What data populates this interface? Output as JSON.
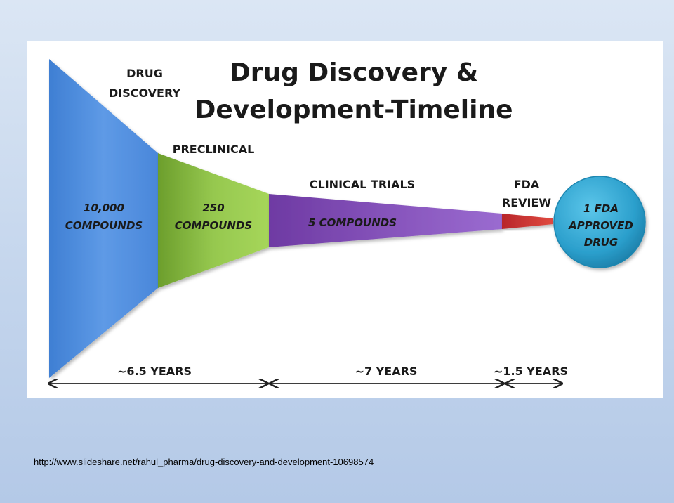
{
  "title": {
    "line1": "Drug Discovery &",
    "line2": "Development-Timeline"
  },
  "stages": [
    {
      "name_line1": "DRUG",
      "name_line2": "DISCOVERY",
      "count_line1": "10,000",
      "count_line2": "COMPOUNDS",
      "color": "#4f8fde"
    },
    {
      "name_line1": "PRECLINICAL",
      "name_line2": "",
      "count_line1": "250",
      "count_line2": "COMPOUNDS",
      "color": "#86b73f"
    },
    {
      "name_line1": "CLINICAL TRIALS",
      "name_line2": "",
      "count_line1": "5 COMPOUNDS",
      "count_line2": "",
      "color": "#7f4bb0"
    },
    {
      "name_line1": "FDA",
      "name_line2": "REVIEW",
      "count_line1": "",
      "count_line2": "",
      "color": "#c8302e"
    }
  ],
  "outcome": {
    "line1": "1 FDA",
    "line2": "APPROVED",
    "line3": "DRUG",
    "color": "#2a9cc9"
  },
  "timeline": [
    {
      "label": "~6.5 YEARS"
    },
    {
      "label": "~7 YEARS"
    },
    {
      "label": "~1.5 YEARS"
    }
  ],
  "source_url": "http://www.slideshare.net/rahul_pharma/drug-discovery-and-development-10698574"
}
